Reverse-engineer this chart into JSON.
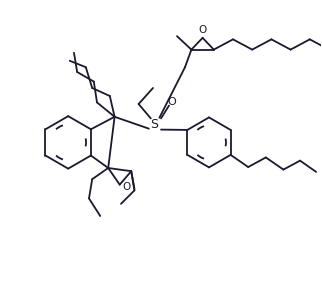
{
  "bg": "#ffffff",
  "lc": "#1a1a2e",
  "lw": 1.3,
  "fw": 3.22,
  "fh": 2.88,
  "dpi": 100,
  "xlim": [
    0,
    10
  ],
  "ylim": [
    0,
    9
  ]
}
